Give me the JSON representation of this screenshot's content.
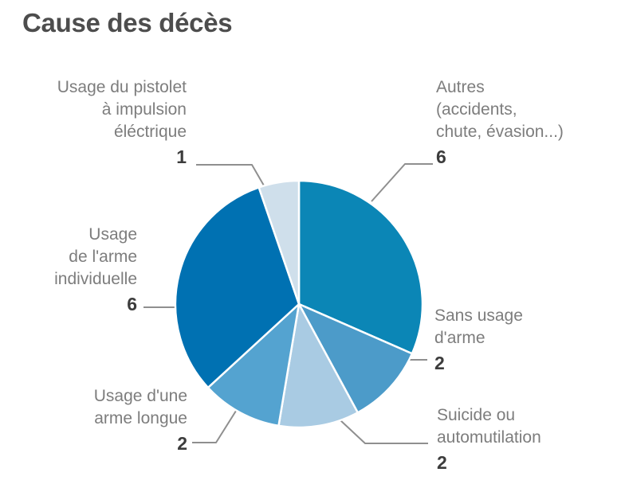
{
  "title": "Cause des décès",
  "chart_data": {
    "type": "pie",
    "title": "Cause des décès",
    "total": 19,
    "start_angle_deg": 0,
    "direction": "clockwise",
    "legend_position": "outside-callouts",
    "slices": [
      {
        "label": "Autres (accidents, chute, évasion...)",
        "label_display": "Autres\n(accidents,\nchute, évasion...)",
        "value": 6,
        "color": "#0b86b6"
      },
      {
        "label": "Sans usage d'arme",
        "label_display": "Sans usage\nd'arme",
        "value": 2,
        "color": "#4c9bc9"
      },
      {
        "label": "Suicide ou automutilation",
        "label_display": "Suicide ou\nautomutilation",
        "value": 2,
        "color": "#a9cbe3"
      },
      {
        "label": "Usage d'une arme longue",
        "label_display": "Usage d'une\narme longue",
        "value": 2,
        "color": "#54a3d0"
      },
      {
        "label": "Usage de l'arme individuelle",
        "label_display": "Usage\nde l'arme\nindividuelle",
        "value": 6,
        "color": "#0071b2"
      },
      {
        "label": "Usage du pistolet à impulsion éléctrique",
        "label_display": "Usage du pistolet\nà impulsion\néléctrique",
        "value": 1,
        "color": "#cfdfeb"
      }
    ],
    "leader_line_color": "#8f8f8f",
    "slice_border_color": "#ffffff"
  }
}
